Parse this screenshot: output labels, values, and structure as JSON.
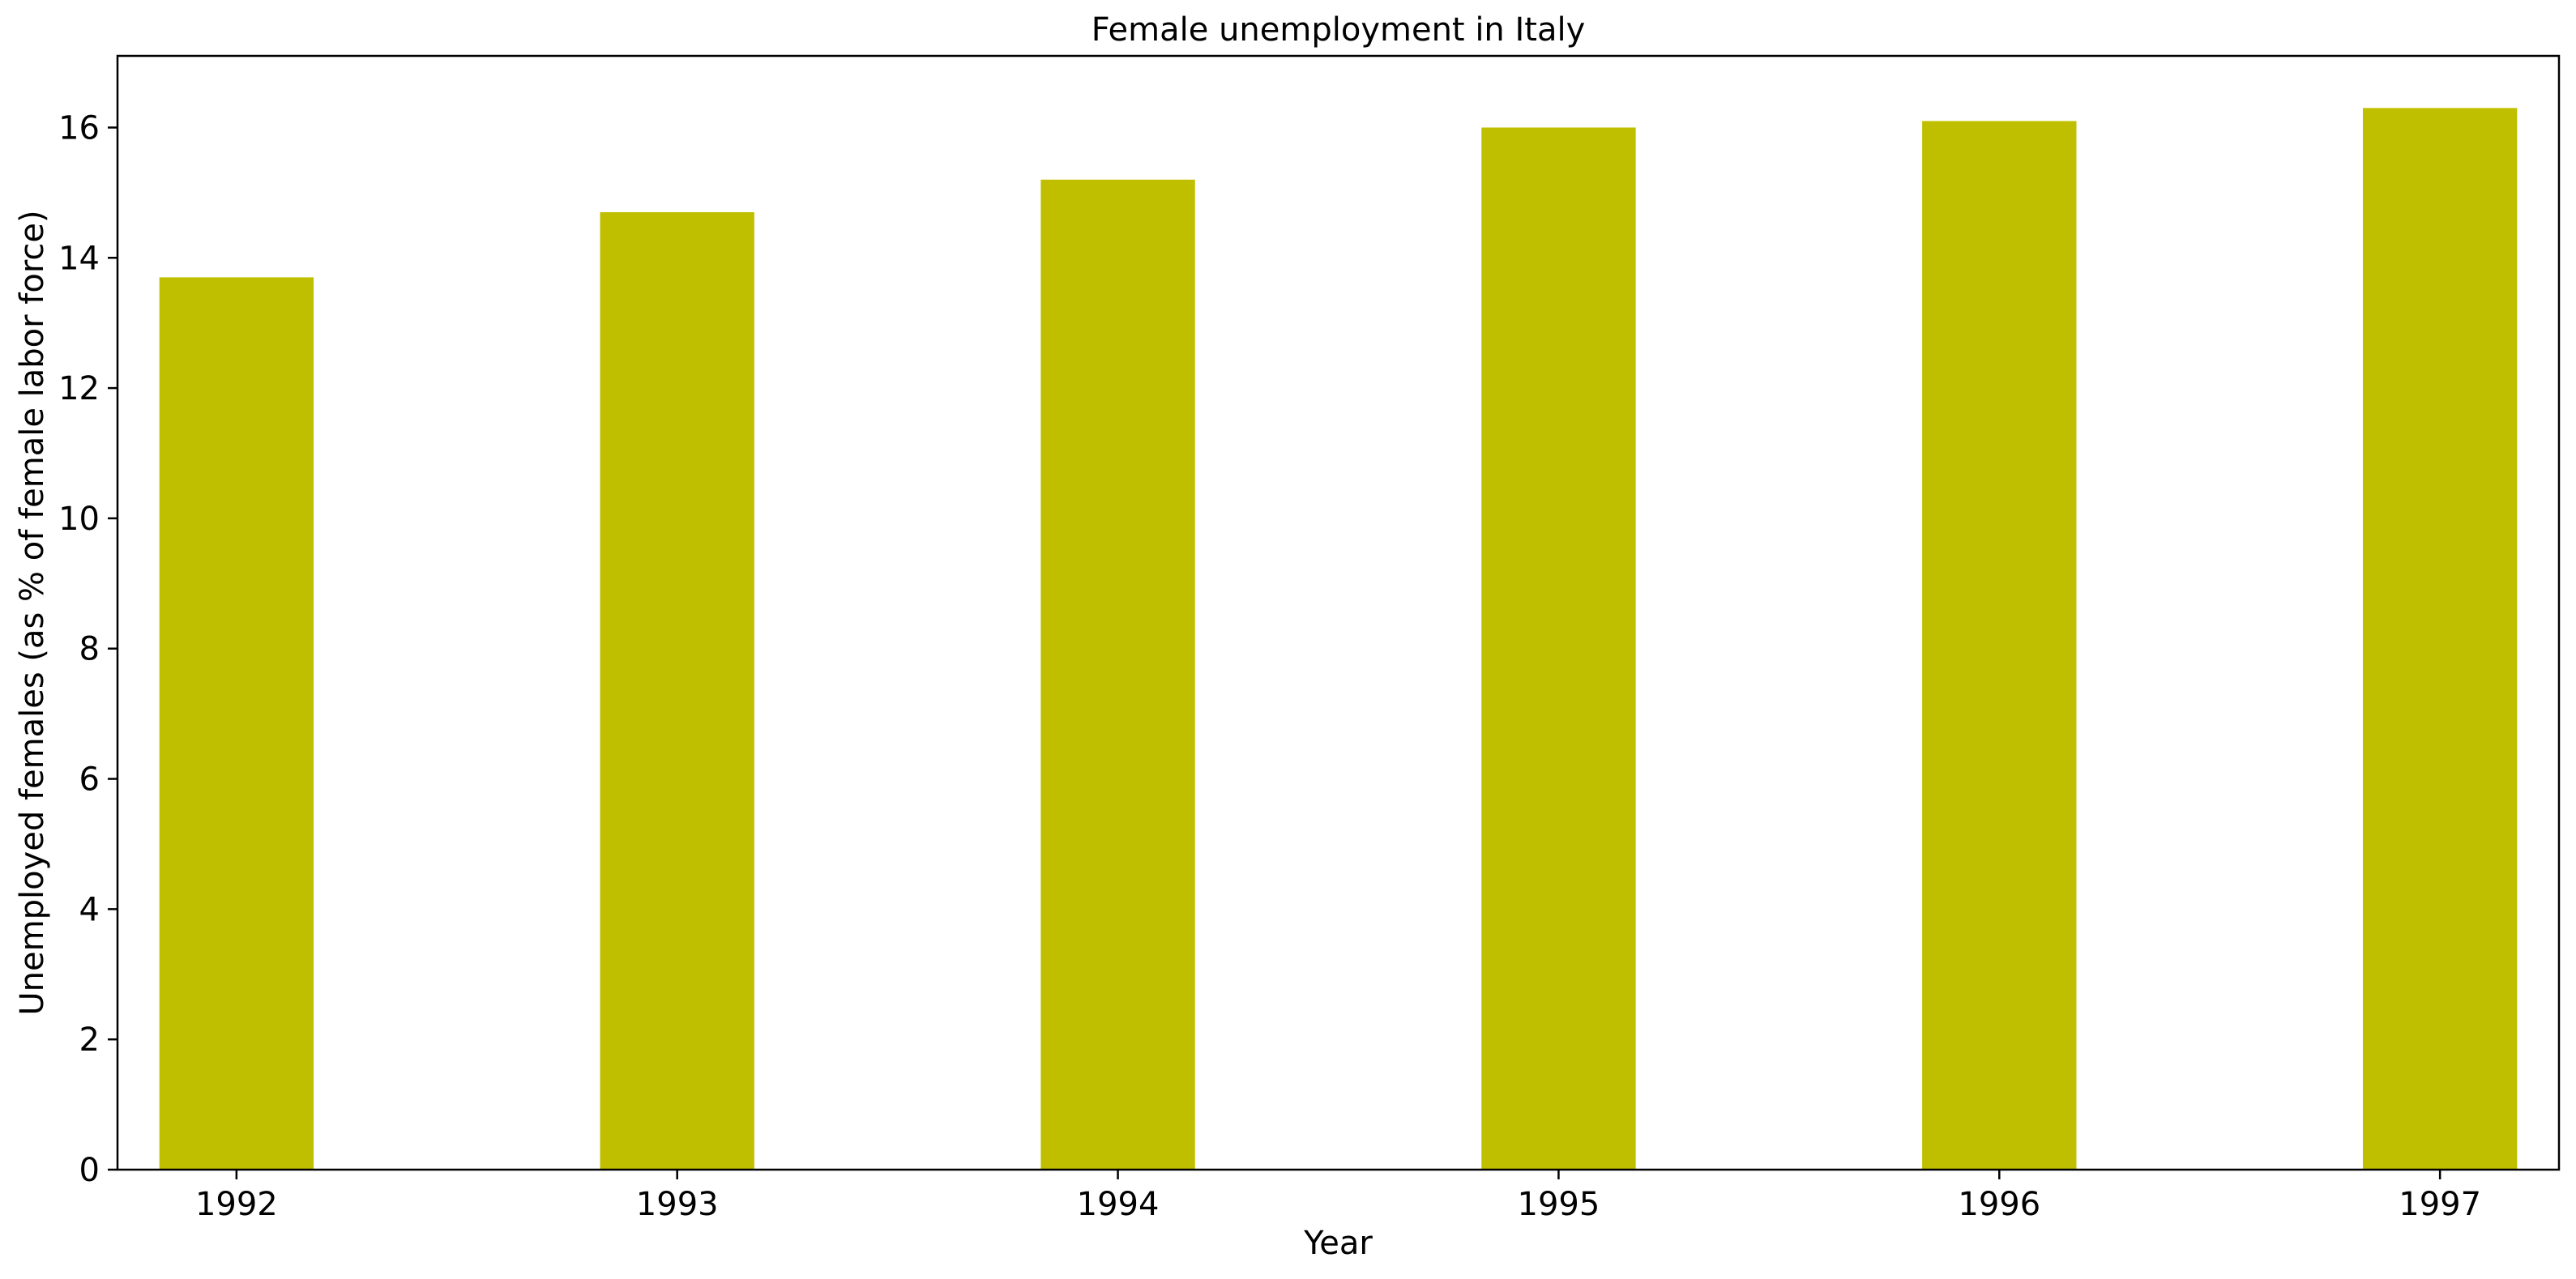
{
  "chart_data": {
    "type": "bar",
    "title": "Female unemployment in Italy",
    "xlabel": "Year",
    "ylabel": "Unemployed females (as % of female labor force)",
    "categories": [
      "1992",
      "1993",
      "1994",
      "1995",
      "1996",
      "1997"
    ],
    "values": [
      13.7,
      14.7,
      15.2,
      16.0,
      16.1,
      16.3
    ],
    "ylim": [
      0,
      17.1
    ],
    "yticks": [
      0,
      2,
      4,
      6,
      8,
      10,
      12,
      14,
      16
    ],
    "bar_color": "#bfbf00",
    "grid": false,
    "legend": "none"
  }
}
